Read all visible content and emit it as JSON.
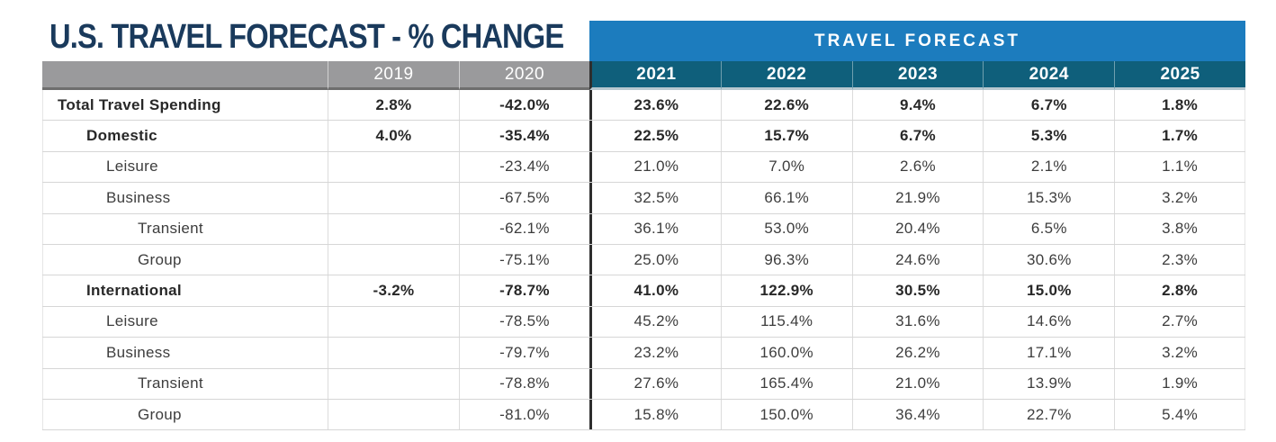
{
  "title": "U.S. TRAVEL FORECAST - % CHANGE",
  "forecast_banner": "TRAVEL FORECAST",
  "colors": {
    "title_navy": "#1A3A5C",
    "banner_blue": "#1C7CBE",
    "forecast_teal": "#0F5F7B",
    "history_gray": "#9A9A9C",
    "divider_black": "#2E2E2E",
    "header_text": "#FFFFFF"
  },
  "chart_data": {
    "type": "table",
    "title": "U.S. TRAVEL FORECAST - % CHANGE",
    "group_header": {
      "label": "TRAVEL FORECAST",
      "spans_columns": [
        "2021",
        "2022",
        "2023",
        "2024",
        "2025"
      ]
    },
    "columns": [
      "2019",
      "2020",
      "2021",
      "2022",
      "2023",
      "2024",
      "2025"
    ],
    "rows": [
      {
        "label": "Total Travel Spending",
        "indent": 0,
        "bold": true,
        "values": [
          "2.8%",
          "-42.0%",
          "23.6%",
          "22.6%",
          "9.4%",
          "6.7%",
          "1.8%"
        ]
      },
      {
        "label": "Domestic",
        "indent": 1,
        "bold": true,
        "values": [
          "4.0%",
          "-35.4%",
          "22.5%",
          "15.7%",
          "6.7%",
          "5.3%",
          "1.7%"
        ]
      },
      {
        "label": "Leisure",
        "indent": 2,
        "bold": false,
        "values": [
          "",
          "-23.4%",
          "21.0%",
          "7.0%",
          "2.6%",
          "2.1%",
          "1.1%"
        ]
      },
      {
        "label": "Business",
        "indent": 2,
        "bold": false,
        "values": [
          "",
          "-67.5%",
          "32.5%",
          "66.1%",
          "21.9%",
          "15.3%",
          "3.2%"
        ]
      },
      {
        "label": "Transient",
        "indent": 3,
        "bold": false,
        "values": [
          "",
          "-62.1%",
          "36.1%",
          "53.0%",
          "20.4%",
          "6.5%",
          "3.8%"
        ]
      },
      {
        "label": "Group",
        "indent": 3,
        "bold": false,
        "values": [
          "",
          "-75.1%",
          "25.0%",
          "96.3%",
          "24.6%",
          "30.6%",
          "2.3%"
        ]
      },
      {
        "label": "International",
        "indent": 1,
        "bold": true,
        "values": [
          "-3.2%",
          "-78.7%",
          "41.0%",
          "122.9%",
          "30.5%",
          "15.0%",
          "2.8%"
        ]
      },
      {
        "label": "Leisure",
        "indent": 2,
        "bold": false,
        "values": [
          "",
          "-78.5%",
          "45.2%",
          "115.4%",
          "31.6%",
          "14.6%",
          "2.7%"
        ]
      },
      {
        "label": "Business",
        "indent": 2,
        "bold": false,
        "values": [
          "",
          "-79.7%",
          "23.2%",
          "160.0%",
          "26.2%",
          "17.1%",
          "3.2%"
        ]
      },
      {
        "label": "Transient",
        "indent": 3,
        "bold": false,
        "values": [
          "",
          "-78.8%",
          "27.6%",
          "165.4%",
          "21.0%",
          "13.9%",
          "1.9%"
        ]
      },
      {
        "label": "Group",
        "indent": 3,
        "bold": false,
        "values": [
          "",
          "-81.0%",
          "15.8%",
          "150.0%",
          "36.4%",
          "22.7%",
          "5.4%"
        ]
      }
    ]
  }
}
